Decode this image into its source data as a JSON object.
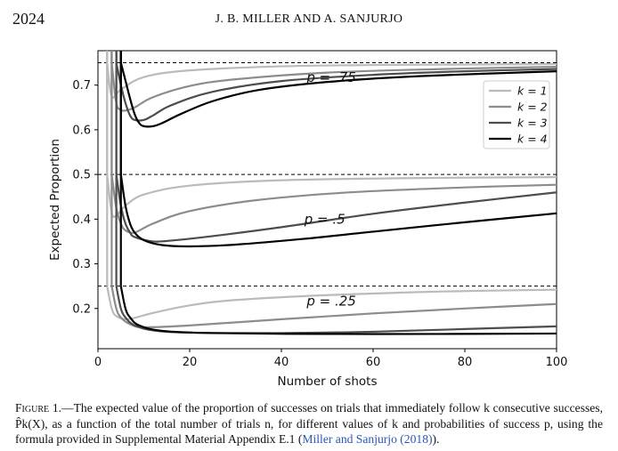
{
  "header": {
    "page_number": "2024",
    "running_head": "J. B. MILLER AND A. SANJURJO"
  },
  "caption": {
    "label": "Figure 1.",
    "text": "—The expected value of the proportion of successes on trials that immediately follow k consecutive successes, P̂k(X), as a function of the total number of trials n, for different values of k and probabilities of success p, using the formula provided in Supplemental Material Appendix E.1 (",
    "link": "Miller and Sanjurjo (2018)",
    "end": ")."
  },
  "chart_data": {
    "type": "line",
    "xlabel": "Number of shots",
    "ylabel": "Expected Proportion",
    "xlim": [
      0,
      100
    ],
    "ylim": [
      0.11,
      0.777
    ],
    "xticks": [
      0,
      20,
      40,
      60,
      80,
      100
    ],
    "yticks": [
      0.2,
      0.3,
      0.4,
      0.5,
      0.6,
      0.7
    ],
    "grid": false,
    "legend_position": "right, beside the p = .75 group",
    "legend": [
      "k = 1",
      "k = 2",
      "k = 3",
      "k = 4"
    ],
    "colors": [
      "#bbbbbb",
      "#8c8c8c",
      "#4d4d4d",
      "#000000"
    ],
    "reference_lines": [
      0.75,
      0.5,
      0.25
    ],
    "annotations": [
      {
        "text": "p = .75",
        "x": 45.5,
        "y": 0.707
      },
      {
        "text": "p = .5",
        "x": 45,
        "y": 0.39
      },
      {
        "text": "p = .25",
        "x": 45.5,
        "y": 0.207
      }
    ],
    "groups": [
      {
        "p": 0.75,
        "series": [
          {
            "name": "k = 1",
            "points": [
              [
                2,
                0.75
              ],
              [
                3,
                0.675
              ],
              [
                5,
                0.69
              ],
              [
                10,
                0.718
              ],
              [
                20,
                0.733
              ],
              [
                40,
                0.742
              ],
              [
                60,
                0.745
              ],
              [
                80,
                0.746
              ],
              [
                100,
                0.747
              ]
            ]
          },
          {
            "name": "k = 2",
            "points": [
              [
                3,
                0.75
              ],
              [
                4,
                0.66
              ],
              [
                5,
                0.645
              ],
              [
                6,
                0.643
              ],
              [
                8,
                0.65
              ],
              [
                12,
                0.673
              ],
              [
                20,
                0.698
              ],
              [
                30,
                0.713
              ],
              [
                50,
                0.728
              ],
              [
                75,
                0.736
              ],
              [
                100,
                0.741
              ]
            ]
          },
          {
            "name": "k = 3",
            "points": [
              [
                4,
                0.75
              ],
              [
                5,
                0.7
              ],
              [
                6,
                0.66
              ],
              [
                7,
                0.632
              ],
              [
                8,
                0.622
              ],
              [
                10,
                0.622
              ],
              [
                12,
                0.632
              ],
              [
                16,
                0.655
              ],
              [
                25,
                0.685
              ],
              [
                40,
                0.709
              ],
              [
                60,
                0.723
              ],
              [
                80,
                0.731
              ],
              [
                100,
                0.736
              ]
            ]
          },
          {
            "name": "k = 4",
            "points": [
              [
                5,
                0.75
              ],
              [
                6,
                0.71
              ],
              [
                7,
                0.67
              ],
              [
                8,
                0.635
              ],
              [
                9,
                0.615
              ],
              [
                10,
                0.608
              ],
              [
                12,
                0.608
              ],
              [
                14,
                0.615
              ],
              [
                18,
                0.635
              ],
              [
                25,
                0.664
              ],
              [
                35,
                0.689
              ],
              [
                50,
                0.707
              ],
              [
                70,
                0.72
              ],
              [
                100,
                0.731
              ]
            ]
          }
        ]
      },
      {
        "p": 0.5,
        "series": [
          {
            "name": "k = 1",
            "points": [
              [
                2,
                0.5
              ],
              [
                3,
                0.415
              ],
              [
                4,
                0.408
              ],
              [
                6,
                0.43
              ],
              [
                10,
                0.455
              ],
              [
                20,
                0.475
              ],
              [
                40,
                0.487
              ],
              [
                70,
                0.492
              ],
              [
                100,
                0.494
              ]
            ]
          },
          {
            "name": "k = 2",
            "points": [
              [
                3,
                0.5
              ],
              [
                4,
                0.425
              ],
              [
                5,
                0.39
              ],
              [
                6,
                0.375
              ],
              [
                8,
                0.37
              ],
              [
                12,
                0.39
              ],
              [
                20,
                0.418
              ],
              [
                35,
                0.443
              ],
              [
                55,
                0.46
              ],
              [
                80,
                0.471
              ],
              [
                100,
                0.477
              ]
            ]
          },
          {
            "name": "k = 3",
            "points": [
              [
                4,
                0.5
              ],
              [
                5,
                0.43
              ],
              [
                6,
                0.39
              ],
              [
                7,
                0.37
              ],
              [
                8,
                0.36
              ],
              [
                12,
                0.35
              ],
              [
                16,
                0.352
              ],
              [
                25,
                0.362
              ],
              [
                40,
                0.382
              ],
              [
                60,
                0.412
              ],
              [
                80,
                0.437
              ],
              [
                100,
                0.46
              ]
            ]
          },
          {
            "name": "k = 4",
            "points": [
              [
                5,
                0.5
              ],
              [
                6,
                0.43
              ],
              [
                7,
                0.39
              ],
              [
                8,
                0.37
              ],
              [
                10,
                0.353
              ],
              [
                14,
                0.342
              ],
              [
                20,
                0.339
              ],
              [
                30,
                0.343
              ],
              [
                45,
                0.356
              ],
              [
                60,
                0.372
              ],
              [
                80,
                0.393
              ],
              [
                100,
                0.413
              ]
            ]
          }
        ]
      },
      {
        "p": 0.25,
        "series": [
          {
            "name": "k = 1",
            "points": [
              [
                2,
                0.25
              ],
              [
                3,
                0.2
              ],
              [
                4,
                0.183
              ],
              [
                6,
                0.176
              ],
              [
                8,
                0.179
              ],
              [
                12,
                0.19
              ],
              [
                20,
                0.207
              ],
              [
                30,
                0.219
              ],
              [
                50,
                0.23
              ],
              [
                75,
                0.238
              ],
              [
                100,
                0.242
              ]
            ]
          },
          {
            "name": "k = 2",
            "points": [
              [
                3,
                0.25
              ],
              [
                4,
                0.2
              ],
              [
                5,
                0.18
              ],
              [
                7,
                0.165
              ],
              [
                10,
                0.158
              ],
              [
                20,
                0.162
              ],
              [
                40,
                0.176
              ],
              [
                60,
                0.189
              ],
              [
                80,
                0.2
              ],
              [
                100,
                0.21
              ]
            ]
          },
          {
            "name": "k = 3",
            "points": [
              [
                4,
                0.25
              ],
              [
                5,
                0.2
              ],
              [
                6,
                0.18
              ],
              [
                8,
                0.162
              ],
              [
                12,
                0.151
              ],
              [
                20,
                0.146
              ],
              [
                40,
                0.145
              ],
              [
                60,
                0.148
              ],
              [
                80,
                0.154
              ],
              [
                100,
                0.16
              ]
            ]
          },
          {
            "name": "k = 4",
            "points": [
              [
                5,
                0.25
              ],
              [
                6,
                0.2
              ],
              [
                7,
                0.18
              ],
              [
                9,
                0.162
              ],
              [
                14,
                0.15
              ],
              [
                25,
                0.145
              ],
              [
                50,
                0.143
              ],
              [
                75,
                0.143
              ],
              [
                100,
                0.144
              ]
            ]
          }
        ]
      }
    ]
  }
}
